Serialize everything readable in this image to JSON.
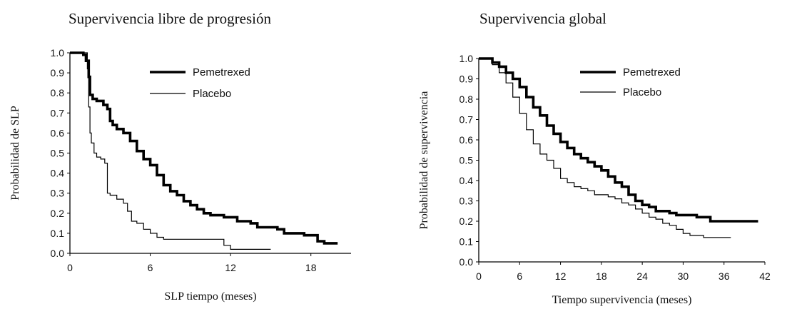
{
  "chart_data": [
    {
      "type": "line",
      "title": "Supervivencia libre de progresión",
      "xlabel": "SLP tiempo (meses)",
      "ylabel": "Probabilidad de SLP",
      "xlim": [
        0,
        21
      ],
      "ylim": [
        0,
        1.0
      ],
      "xticks": [
        "0",
        "6",
        "12",
        "18"
      ],
      "xtick_values": [
        0,
        6,
        12,
        18
      ],
      "yticks": [
        "0.0",
        "0.1",
        "0.2",
        "0.3",
        "0.4",
        "0.5",
        "0.6",
        "0.7",
        "0.8",
        "0.9",
        "1.0"
      ],
      "ytick_values": [
        0.0,
        0.1,
        0.2,
        0.3,
        0.4,
        0.5,
        0.6,
        0.7,
        0.8,
        0.9,
        1.0
      ],
      "grid": false,
      "legend_position": "top-right",
      "series": [
        {
          "name": "Pemetrexed",
          "color": "#000000",
          "style": "thick",
          "x": [
            0,
            0.5,
            1.0,
            1.2,
            1.4,
            1.5,
            1.7,
            2.0,
            2.5,
            2.8,
            3.0,
            3.2,
            3.5,
            4.0,
            4.5,
            5.0,
            5.5,
            6.0,
            6.5,
            7.0,
            7.5,
            8.0,
            8.5,
            9.0,
            9.5,
            10.0,
            10.5,
            11.0,
            11.5,
            12.0,
            12.5,
            13.0,
            13.5,
            14.0,
            14.5,
            15.0,
            15.5,
            16.0,
            16.5,
            17.0,
            17.5,
            18.0,
            18.5,
            19.0,
            20.0
          ],
          "y": [
            1.0,
            1.0,
            0.99,
            0.96,
            0.88,
            0.79,
            0.77,
            0.76,
            0.74,
            0.72,
            0.66,
            0.64,
            0.62,
            0.6,
            0.56,
            0.51,
            0.47,
            0.44,
            0.39,
            0.34,
            0.31,
            0.29,
            0.26,
            0.24,
            0.22,
            0.2,
            0.19,
            0.19,
            0.18,
            0.18,
            0.16,
            0.16,
            0.15,
            0.13,
            0.13,
            0.13,
            0.12,
            0.1,
            0.1,
            0.1,
            0.09,
            0.09,
            0.06,
            0.05,
            0.05
          ]
        },
        {
          "name": "Placebo",
          "color": "#000000",
          "style": "thin",
          "x": [
            0,
            1.0,
            1.3,
            1.4,
            1.5,
            1.6,
            1.8,
            2.0,
            2.3,
            2.6,
            2.8,
            3.0,
            3.5,
            4.0,
            4.3,
            4.6,
            5.0,
            5.5,
            6.0,
            6.5,
            7.0,
            9.0,
            10.0,
            11.0,
            11.5,
            12.0,
            13.0,
            14.0,
            15.0
          ],
          "y": [
            1.0,
            1.0,
            0.92,
            0.73,
            0.6,
            0.55,
            0.5,
            0.48,
            0.47,
            0.45,
            0.3,
            0.29,
            0.27,
            0.25,
            0.21,
            0.16,
            0.15,
            0.12,
            0.1,
            0.08,
            0.07,
            0.07,
            0.07,
            0.07,
            0.04,
            0.02,
            0.02,
            0.02,
            0.02
          ]
        }
      ]
    },
    {
      "type": "line",
      "title": "Supervivencia global",
      "xlabel": "Tiempo supervivencia (meses)",
      "ylabel": "Probabilidad de supervivencia",
      "xlim": [
        0,
        42
      ],
      "ylim": [
        0,
        1.0
      ],
      "xticks": [
        "0",
        "6",
        "12",
        "18",
        "24",
        "30",
        "36",
        "42"
      ],
      "xtick_values": [
        0,
        6,
        12,
        18,
        24,
        30,
        36,
        42
      ],
      "yticks": [
        "0.0",
        "0.1",
        "0.2",
        "0.3",
        "0.4",
        "0.5",
        "0.6",
        "0.7",
        "0.8",
        "0.9",
        "1.0"
      ],
      "ytick_values": [
        0.0,
        0.1,
        0.2,
        0.3,
        0.4,
        0.5,
        0.6,
        0.7,
        0.8,
        0.9,
        1.0
      ],
      "grid": false,
      "legend_position": "top-right",
      "series": [
        {
          "name": "Pemetrexed",
          "color": "#000000",
          "style": "thick",
          "x": [
            0,
            1,
            2,
            3,
            4,
            5,
            6,
            7,
            8,
            9,
            10,
            11,
            12,
            13,
            14,
            15,
            16,
            17,
            18,
            19,
            20,
            21,
            22,
            23,
            24,
            25,
            26,
            27,
            28,
            29,
            30,
            31,
            32,
            33,
            34,
            36,
            38,
            40,
            41
          ],
          "y": [
            1.0,
            1.0,
            0.98,
            0.96,
            0.93,
            0.9,
            0.86,
            0.81,
            0.76,
            0.72,
            0.67,
            0.63,
            0.59,
            0.56,
            0.53,
            0.51,
            0.49,
            0.47,
            0.45,
            0.42,
            0.39,
            0.37,
            0.33,
            0.3,
            0.28,
            0.27,
            0.25,
            0.25,
            0.24,
            0.23,
            0.23,
            0.23,
            0.22,
            0.22,
            0.2,
            0.2,
            0.2,
            0.2,
            0.2
          ]
        },
        {
          "name": "Placebo",
          "color": "#000000",
          "style": "thin",
          "x": [
            0,
            1,
            2,
            3,
            4,
            5,
            6,
            7,
            8,
            9,
            10,
            11,
            12,
            13,
            14,
            15,
            16,
            17,
            18,
            19,
            20,
            21,
            22,
            23,
            24,
            25,
            26,
            27,
            28,
            29,
            30,
            31,
            32,
            33,
            34,
            35,
            36,
            37
          ],
          "y": [
            1.0,
            1.0,
            0.97,
            0.93,
            0.88,
            0.81,
            0.73,
            0.65,
            0.58,
            0.53,
            0.5,
            0.46,
            0.41,
            0.39,
            0.37,
            0.36,
            0.35,
            0.33,
            0.33,
            0.32,
            0.31,
            0.29,
            0.28,
            0.26,
            0.24,
            0.22,
            0.21,
            0.19,
            0.18,
            0.16,
            0.14,
            0.13,
            0.13,
            0.12,
            0.12,
            0.12,
            0.12,
            0.12
          ]
        }
      ]
    }
  ]
}
